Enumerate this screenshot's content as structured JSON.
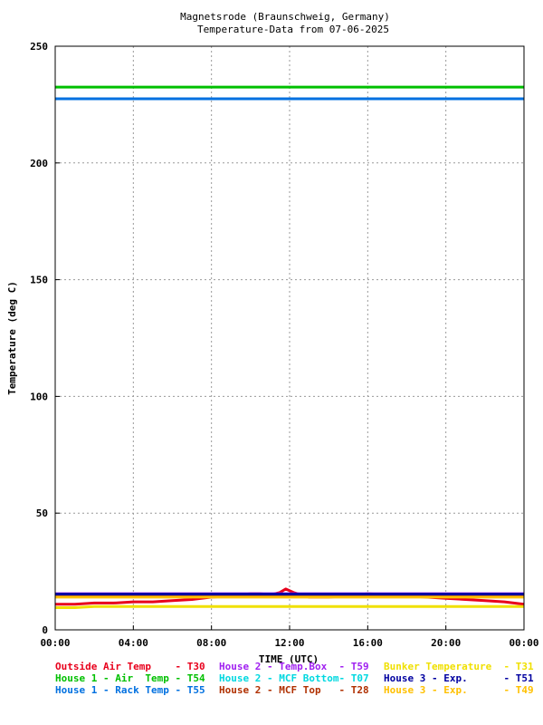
{
  "chart_data": {
    "type": "line",
    "title": "Magnetsrode (Braunschweig, Germany)",
    "subtitle": "Temperature-Data from 07-06-2025",
    "xlabel": "TIME (UTC)",
    "ylabel": "Temperature (deg C)",
    "xlim": [
      0,
      24
    ],
    "ylim": [
      0,
      250
    ],
    "grid": true,
    "x_ticks": [
      {
        "value": 0,
        "label": "00:00"
      },
      {
        "value": 4,
        "label": "04:00"
      },
      {
        "value": 8,
        "label": "08:00"
      },
      {
        "value": 12,
        "label": "12:00"
      },
      {
        "value": 16,
        "label": "16:00"
      },
      {
        "value": 20,
        "label": "20:00"
      },
      {
        "value": 24,
        "label": "00:00"
      }
    ],
    "y_ticks": [
      {
        "value": 0,
        "label": "0"
      },
      {
        "value": 50,
        "label": "50"
      },
      {
        "value": 100,
        "label": "100"
      },
      {
        "value": 150,
        "label": "150"
      },
      {
        "value": 200,
        "label": "200"
      },
      {
        "value": 250,
        "label": "250"
      }
    ],
    "legend_position": "bottom",
    "series": [
      {
        "name": "Outside Air Temp    - T30",
        "color": "#e8001c",
        "x": [
          0,
          1,
          2,
          3,
          4,
          5,
          6,
          7,
          8,
          9,
          10,
          10.5,
          11,
          11.5,
          11.8,
          12.2,
          13,
          14,
          15,
          16,
          17,
          18,
          19,
          20,
          21,
          22,
          23,
          24
        ],
        "y": [
          11,
          11,
          11.5,
          11.5,
          12,
          12,
          12.5,
          13,
          14,
          14.5,
          15.5,
          15.5,
          15,
          16,
          17.5,
          16,
          14,
          14,
          14.5,
          15.5,
          15,
          14.5,
          14,
          13.5,
          13,
          12.5,
          12,
          11
        ]
      },
      {
        "name": "House 1 - Air  Temp - T54",
        "color": "#00c000",
        "x": [
          0,
          24
        ],
        "y": [
          232.5,
          232.5
        ]
      },
      {
        "name": "House 1 - Rack Temp - T55",
        "color": "#0070e0",
        "x": [
          0,
          24
        ],
        "y": [
          227.5,
          227.5
        ]
      },
      {
        "name": "House 2 - Temp.Box  - T59",
        "color": "#a020f0",
        "x": [
          0,
          24
        ],
        "y": [
          15.5,
          15.5
        ]
      },
      {
        "name": "House 2 - MCF Bottom- T07",
        "color": "#00d8e0",
        "x": [
          0,
          24
        ],
        "y": [
          15,
          15
        ]
      },
      {
        "name": "House 2 - MCF Top   - T28",
        "color": "#b03000",
        "x": [
          0,
          24
        ],
        "y": [
          14.5,
          14.5
        ]
      },
      {
        "name": "Bunker Temperature  - T31",
        "color": "#f0e000",
        "x": [
          0,
          1,
          2,
          24
        ],
        "y": [
          9.5,
          9.5,
          10,
          10
        ]
      },
      {
        "name": "House 3 - Exp.      - T51",
        "color": "#0000a0",
        "x": [
          0,
          24
        ],
        "y": [
          15.3,
          15.3
        ]
      },
      {
        "name": "House 3 - Exp.      - T49",
        "color": "#ffc000",
        "x": [
          0,
          24
        ],
        "y": [
          14,
          14
        ]
      }
    ]
  }
}
